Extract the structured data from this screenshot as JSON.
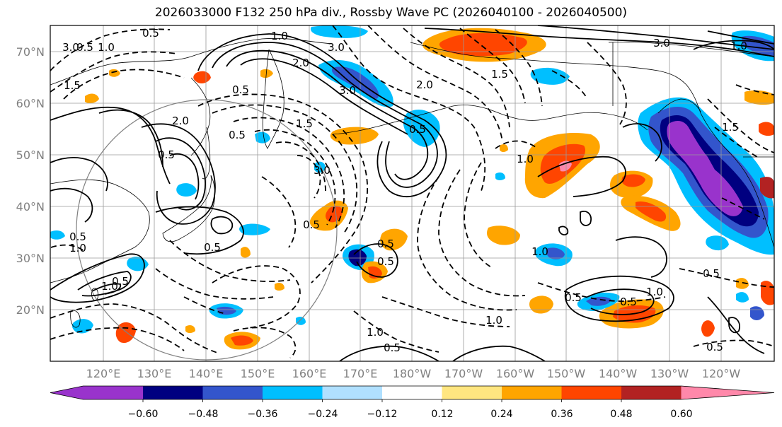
{
  "title": "2026033000 F132 250 hPa div., Rossby Wave PC (2026040100 - 2026040500)",
  "latitude_labels": [
    "70°N",
    "60°N",
    "50°N",
    "40°N",
    "30°N",
    "20°N"
  ],
  "longitude_labels": [
    "120°E",
    "130°E",
    "140°E",
    "150°E",
    "160°E",
    "170°E",
    "180°W",
    "170°W",
    "160°W",
    "150°W",
    "140°W",
    "130°W",
    "120°W"
  ],
  "colorbar": {
    "tick_labels": [
      "−0.60",
      "−0.48",
      "−0.36",
      "−0.24",
      "−0.12",
      "0.12",
      "0.24",
      "0.36",
      "0.48",
      "0.60"
    ],
    "colors": [
      "#9933cc",
      "#000080",
      "#3355cc",
      "#00bfff",
      "#b0e0ff",
      "#ffffff",
      "#ffe680",
      "#ffa500",
      "#ff4500",
      "#b22222",
      "#ff88aa",
      "#ff88aa"
    ]
  },
  "contour_labels": [
    "0.5",
    "3.0",
    "1.0",
    "3.0",
    "2.0",
    "3.0",
    "0.5",
    "1.5",
    "1.0",
    "3.0",
    "0.5",
    "1.5",
    "2.0",
    "1.5",
    "2.0",
    "0.5",
    "3.0",
    "0.5",
    "0.5",
    "1.0",
    "0.5",
    "0.5",
    "0.5",
    "1.0",
    "0.5",
    "1.0",
    "0.5",
    "0.5",
    "1.0",
    "0.5",
    "1.0",
    "0.5",
    "1.0",
    "0.5",
    "0.5",
    "1.0",
    "0.5",
    "1.5",
    "1.0"
  ],
  "colors": {
    "positive_contour": "#000000",
    "negative_contour": "#000000",
    "grid": "#9a9a9a",
    "coast": "#000000",
    "circle": "#808080"
  }
}
